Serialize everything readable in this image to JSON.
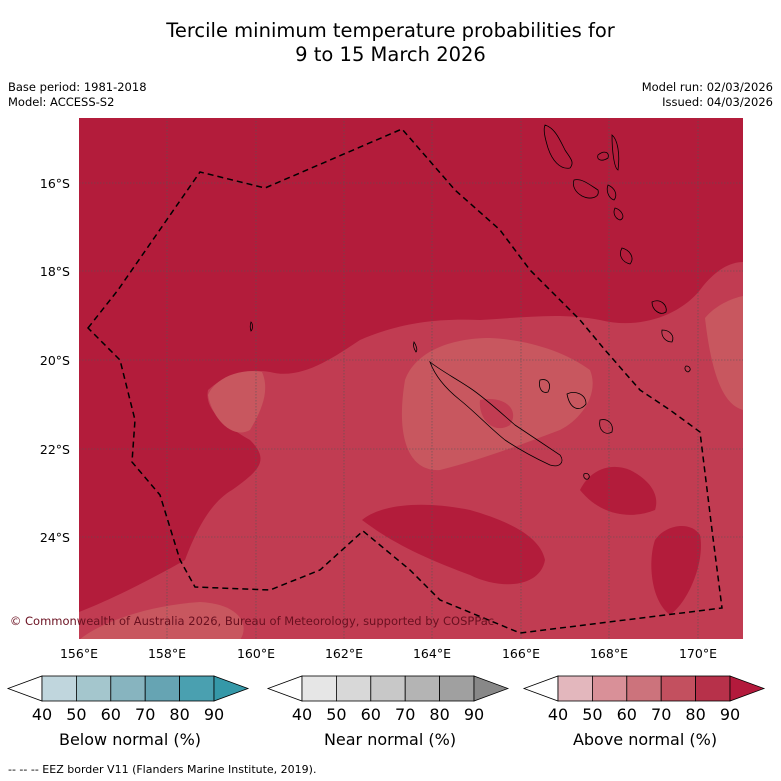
{
  "title": {
    "line1": "Tercile minimum temperature probabilities for",
    "line2": "9 to 15 March 2026"
  },
  "meta": {
    "base_period": "Base period: 1981-2018",
    "model": "Model: ACCESS-S2",
    "model_run": "Model run: 02/03/2026",
    "issued": "Issued: 04/03/2026"
  },
  "map": {
    "lat_labels": [
      "16°S",
      "18°S",
      "20°S",
      "22°S",
      "24°S"
    ],
    "lon_labels": [
      "156°E",
      "158°E",
      "160°E",
      "162°E",
      "164°E",
      "166°E",
      "168°E",
      "170°E"
    ],
    "copyright": "© Commonwealth of Australia 2026, Bureau of Meteorology, supported by COSPPac"
  },
  "colorbars": [
    {
      "label": "Below normal (%)",
      "ticks": [
        "40",
        "50",
        "60",
        "70",
        "80",
        "90"
      ],
      "colors": [
        "#ffffff",
        "#c0d6dd",
        "#a4c6cd",
        "#87b4bf",
        "#66a4b3",
        "#4aa0b0",
        "#3598a8"
      ]
    },
    {
      "label": "Near normal (%)",
      "ticks": [
        "40",
        "50",
        "60",
        "70",
        "80",
        "90"
      ],
      "colors": [
        "#ffffff",
        "#e6e6e6",
        "#d8d8d8",
        "#c8c8c8",
        "#b4b4b4",
        "#a0a0a0",
        "#888888"
      ]
    },
    {
      "label": "Above normal (%)",
      "ticks": [
        "40",
        "50",
        "60",
        "70",
        "80",
        "90"
      ],
      "colors": [
        "#ffffff",
        "#e3b7bd",
        "#d99098",
        "#cc737c",
        "#c3505f",
        "#b7314a",
        "#b31a3c"
      ]
    }
  ],
  "footer": {
    "legend": "--  --  -- EEZ border V11 (Flanders Marine Institute, 2019)."
  },
  "colors": {
    "above_90": "#b31c3b",
    "above_80": "#c13c52",
    "above_70": "#c8575f"
  }
}
